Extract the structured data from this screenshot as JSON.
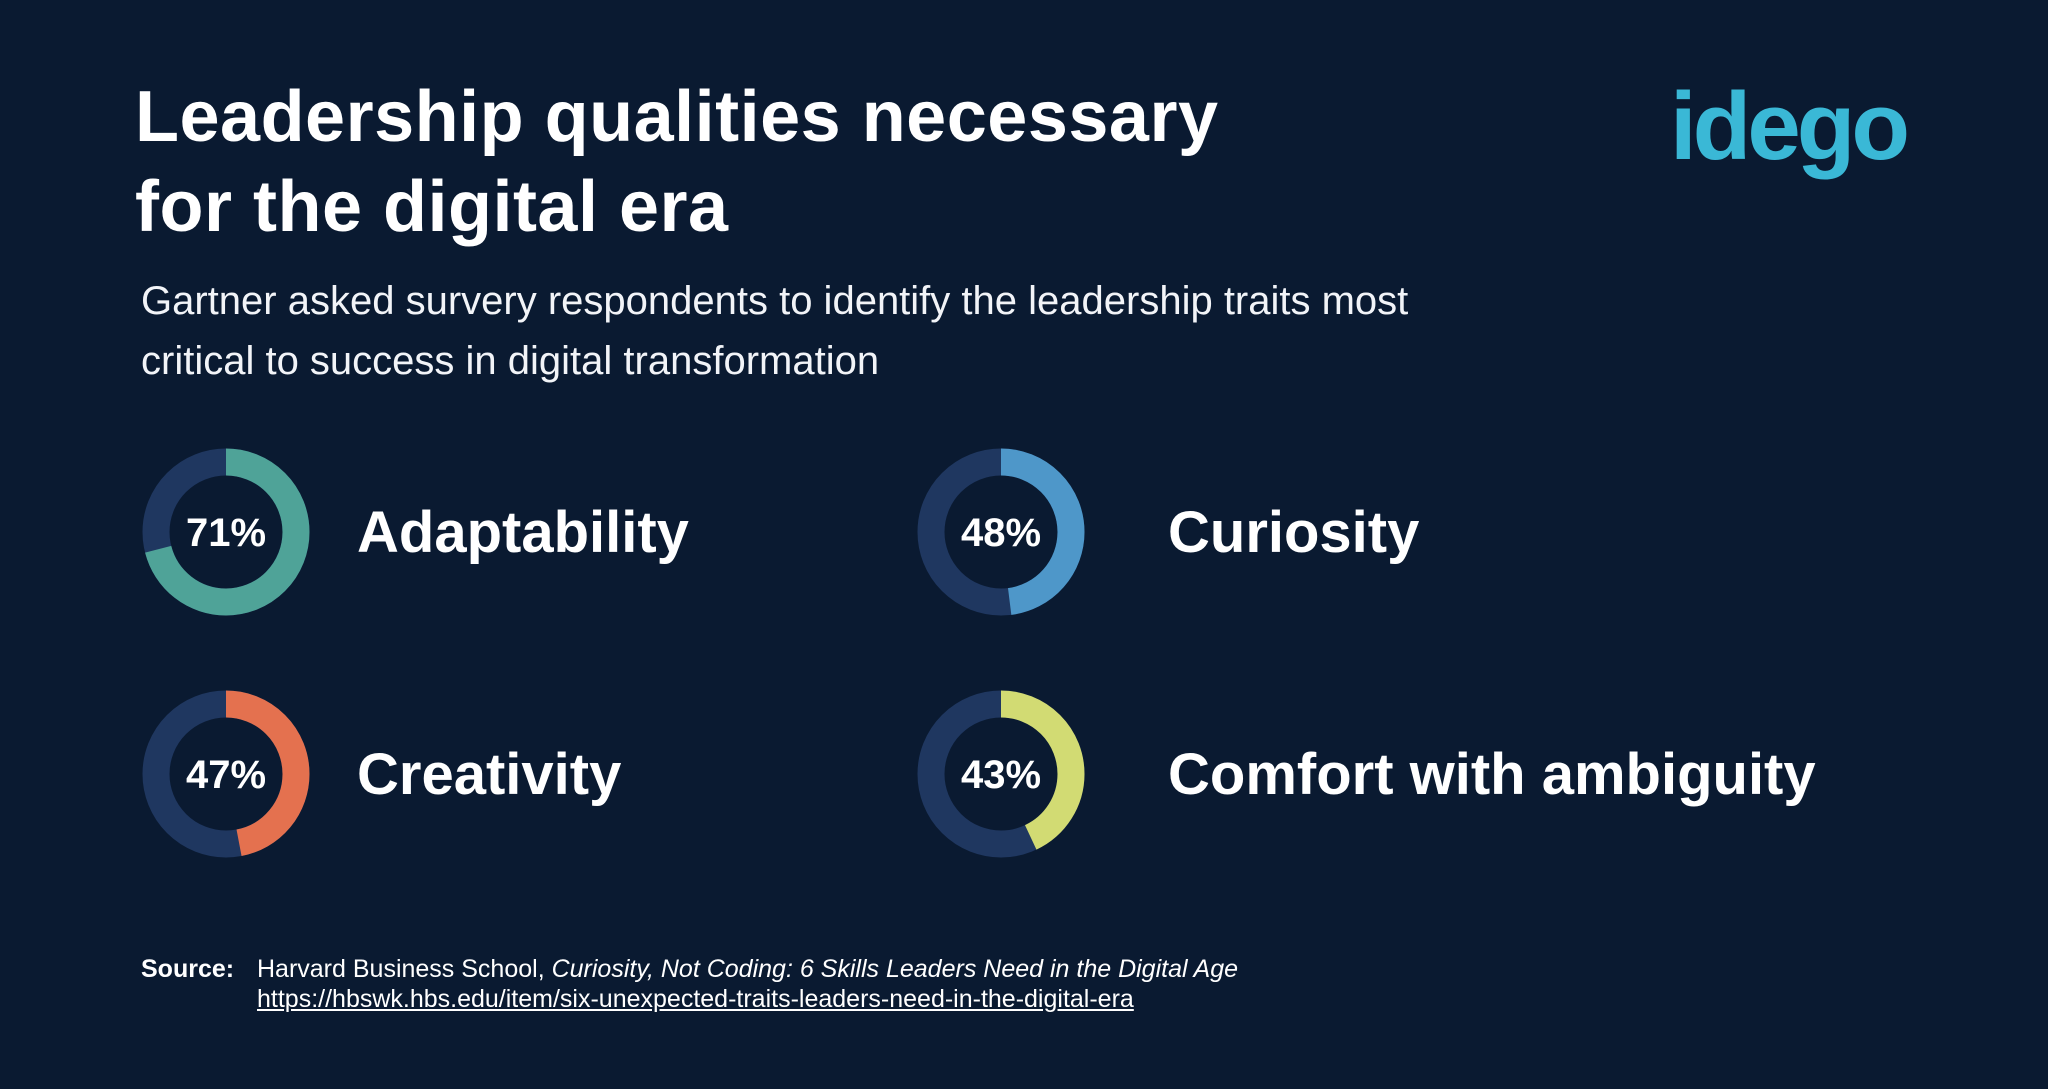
{
  "header": {
    "title_line1": "Leadership qualities necessary",
    "title_line2": "for the digital era",
    "logo": "idego",
    "subtitle_line1": "Gartner asked survery respondents to identify the leadership traits most",
    "subtitle_line2": "critical to success in digital transformation"
  },
  "colors": {
    "background": "#0a1a31",
    "ring_track": "#1f3760",
    "logo": "#3ab8d6"
  },
  "chart_data": {
    "type": "donut",
    "unit": "%",
    "categories": [
      "Adaptability",
      "Curiosity",
      "Creativity",
      "Comfort with ambiguity"
    ],
    "values": [
      71,
      48,
      47,
      43
    ],
    "value_labels": [
      "71%",
      "48%",
      "47%",
      "43%"
    ],
    "colors": [
      "#4fa398",
      "#4e97c9",
      "#e4714f",
      "#d2db73"
    ],
    "max": 100
  },
  "source": {
    "label": "Source:",
    "publisher": "Harvard Business School, ",
    "title": "Curiosity, Not Coding: 6 Skills Leaders Need in the Digital Age",
    "url": "https://hbswk.hbs.edu/item/six-unexpected-traits-leaders-need-in-the-digital-era"
  }
}
